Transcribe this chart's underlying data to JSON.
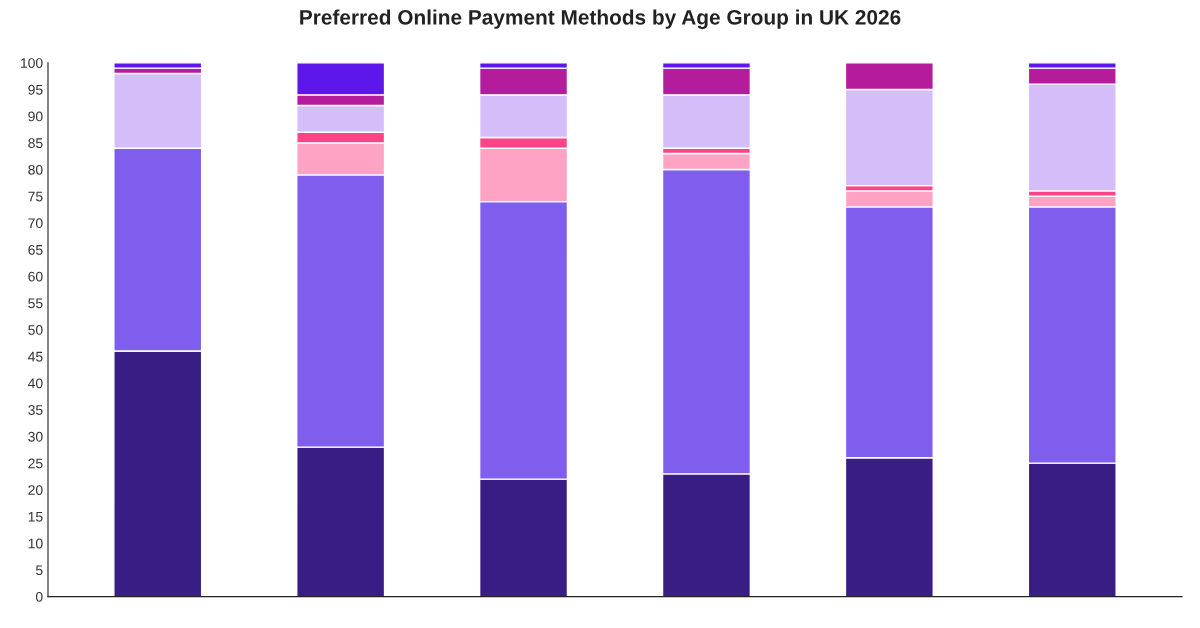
{
  "chart_data": {
    "type": "bar",
    "title": "Preferred Online Payment Methods by Age Group in UK 2026",
    "categories": [
      null,
      null,
      null,
      null,
      null,
      null
    ],
    "stacked": true,
    "series": [
      {
        "color": "#381d84",
        "values": [
          46,
          28,
          22,
          23,
          26,
          25
        ]
      },
      {
        "color": "#7f5eee",
        "values": [
          38,
          51,
          52,
          57,
          47,
          48
        ]
      },
      {
        "color": "#ffa3c5",
        "values": [
          0,
          6,
          10,
          3,
          3,
          2
        ]
      },
      {
        "color": "#ff4389",
        "values": [
          0,
          2,
          2,
          1,
          1,
          1
        ]
      },
      {
        "color": "#d5bdfa",
        "values": [
          14,
          5,
          8,
          10,
          18,
          20
        ]
      },
      {
        "color": "#b41c9c",
        "values": [
          1,
          2,
          5,
          5,
          5,
          3
        ]
      },
      {
        "color": "#5e17eb",
        "values": [
          1,
          6,
          1,
          1,
          0,
          1
        ]
      }
    ],
    "ylim": [
      0,
      100
    ],
    "yticks": [
      0,
      5,
      10,
      15,
      20,
      25,
      30,
      35,
      40,
      45,
      50,
      55,
      60,
      65,
      70,
      75,
      80,
      85,
      90,
      95,
      100
    ],
    "grid": false,
    "legend": false
  }
}
